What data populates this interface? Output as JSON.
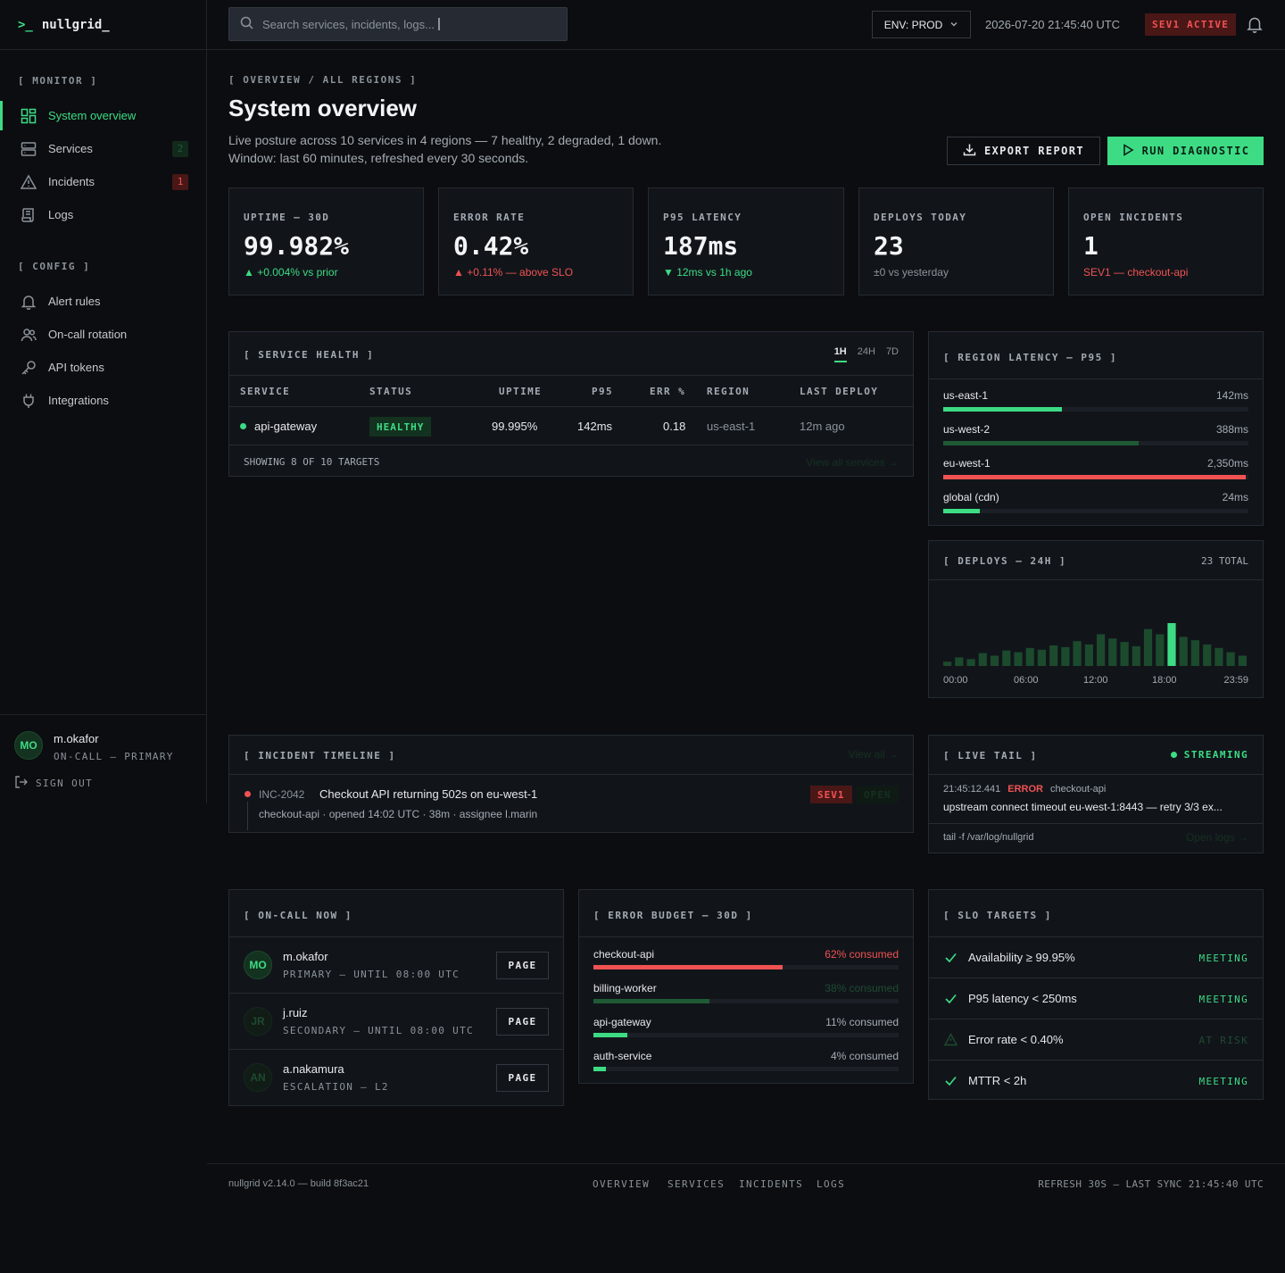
{
  "brand": {
    "prompt": ">_",
    "name": "nullgrid_"
  },
  "search": {
    "placeholder": "Search services, incidents, logs..."
  },
  "topbar": {
    "env": "ENV: PROD",
    "clock": "2026-07-20 21:45:40 UTC",
    "sev_badge": "SEV1 ACTIVE"
  },
  "sidebar": {
    "monitor_label": "[ MONITOR ]",
    "monitor_items": [
      {
        "label": "System overview",
        "icon": "grid-icon"
      },
      {
        "label": "Services",
        "icon": "server-icon",
        "badge": "2"
      },
      {
        "label": "Incidents",
        "icon": "alert-triangle-icon",
        "badge": "1"
      },
      {
        "label": "Logs",
        "icon": "scroll-icon"
      }
    ],
    "config_label": "[ CONFIG ]",
    "config_items": [
      {
        "label": "Alert rules",
        "icon": "bell-icon"
      },
      {
        "label": "On-call rotation",
        "icon": "users-icon"
      },
      {
        "label": "API tokens",
        "icon": "key-icon"
      },
      {
        "label": "Integrations",
        "icon": "plug-icon"
      }
    ],
    "user": {
      "initials": "MO",
      "name": "m.okafor",
      "role": "ON-CALL — PRIMARY",
      "signout": "SIGN OUT"
    }
  },
  "header": {
    "crumb": "[ OVERVIEW / ALL REGIONS ]",
    "title": "System overview",
    "sub1": "Live posture across 10 services in 4 regions — 7 healthy, 2 degraded, 1 down.",
    "sub2": "Window: last 60 minutes, refreshed every 30 seconds.",
    "export": "EXPORT REPORT",
    "diagnostic": "RUN DIAGNOSTIC"
  },
  "kpis": [
    {
      "label": "UPTIME — 30D",
      "value": "99.982%",
      "delta": "▲ +0.004% vs prior",
      "tone": "green"
    },
    {
      "label": "ERROR RATE",
      "value": "0.42%",
      "delta": "▲ +0.11% — above SLO",
      "tone": "red"
    },
    {
      "label": "P95 LATENCY",
      "value": "187ms",
      "delta": "▼ 12ms vs 1h ago",
      "tone": "green"
    },
    {
      "label": "DEPLOYS TODAY",
      "value": "23",
      "delta": "±0 vs yesterday",
      "tone": "muted"
    },
    {
      "label": "OPEN INCIDENTS",
      "value": "1",
      "delta": "SEV1 — checkout-api",
      "tone": "red"
    }
  ],
  "service_health": {
    "title": "[ SERVICE HEALTH ]",
    "ranges": [
      "1H",
      "24H",
      "7D"
    ],
    "columns": [
      "SERVICE",
      "STATUS",
      "UPTIME",
      "P95",
      "ERR %",
      "REGION",
      "LAST DEPLOY"
    ],
    "rows": [
      {
        "service": "api-gateway",
        "status": "HEALTHY",
        "uptime": "99.995%",
        "p95": "142ms",
        "err": "0.18",
        "region": "us-east-1",
        "last_deploy": "12m ago"
      }
    ],
    "footer": "SHOWING 8 OF 10 TARGETS",
    "link": "View all services →"
  },
  "region_latency": {
    "title": "[ REGION LATENCY — P95 ]",
    "rows": [
      {
        "name": "us-east-1",
        "value": "142ms",
        "fill": 0.39,
        "color": "#3ddc84"
      },
      {
        "name": "us-west-2",
        "value": "388ms",
        "fill": 0.64,
        "color": "#1f5a35"
      },
      {
        "name": "eu-west-1",
        "value": "2,350ms",
        "fill": 0.99,
        "color": "#f05252"
      },
      {
        "name": "global (cdn)",
        "value": "24ms",
        "fill": 0.12,
        "color": "#3ddc84"
      }
    ]
  },
  "deploys": {
    "title": "[ DEPLOYS — 24H ]",
    "total": "23 TOTAL",
    "ticks": [
      "00:00",
      "06:00",
      "12:00",
      "18:00",
      "23:59"
    ]
  },
  "chart_data": {
    "type": "bar",
    "values": [
      1,
      2,
      1.6,
      3,
      2.4,
      3.6,
      3.2,
      4.2,
      3.8,
      4.8,
      4.4,
      5.8,
      5,
      7.4,
      6.4,
      5.6,
      4.6,
      8.6,
      7.4,
      10,
      6.8,
      6,
      5,
      4.2,
      3.2,
      2.4
    ],
    "highlight_index": 19,
    "colors": {
      "base": "#1c4a2d",
      "highlight": "#3ddc84"
    }
  },
  "timeline": {
    "title": "[ INCIDENT TIMELINE ]",
    "link": "View all →",
    "items": [
      {
        "id": "INC-2042",
        "title": "Checkout API returning 502s on eu-west-1",
        "meta": "checkout-api · opened 14:02 UTC · 38m · assignee l.marin",
        "sev": "SEV1",
        "state": "OPEN"
      }
    ]
  },
  "live_tail": {
    "title": "[ LIVE TAIL ]",
    "state": "STREAMING",
    "time": "21:45:12.441",
    "level": "ERROR",
    "source": "checkout-api",
    "message": "upstream connect timeout eu-west-1:8443 — retry 3/3 ex...",
    "cmd": "tail -f /var/log/nullgrid",
    "link": "Open logs →"
  },
  "oncall": {
    "title": "[ ON-CALL NOW ]",
    "people": [
      {
        "initials": "MO",
        "name": "m.okafor",
        "role": "PRIMARY — UNTIL 08:00 UTC",
        "action": "PAGE"
      },
      {
        "initials": "JR",
        "name": "j.ruiz",
        "role": "SECONDARY — UNTIL 08:00 UTC",
        "action": "PAGE"
      },
      {
        "initials": "AN",
        "name": "a.nakamura",
        "role": "ESCALATION — L2",
        "action": "PAGE"
      }
    ]
  },
  "error_budget": {
    "title": "[ ERROR BUDGET — 30D ]",
    "rows": [
      {
        "name": "checkout-api",
        "value": "62% consumed",
        "fill": 0.62,
        "color": "#f05252",
        "tone": "#f05252"
      },
      {
        "name": "billing-worker",
        "value": "38% consumed",
        "fill": 0.38,
        "color": "#1f5a35",
        "tone": "#1f4a30"
      },
      {
        "name": "api-gateway",
        "value": "11% consumed",
        "fill": 0.11,
        "color": "#3ddc84",
        "tone": "#a4abb3"
      },
      {
        "name": "auth-service",
        "value": "4% consumed",
        "fill": 0.04,
        "color": "#3ddc84",
        "tone": "#a4abb3"
      }
    ]
  },
  "slo": {
    "title": "[ SLO TARGETS ]",
    "rows": [
      {
        "name": "Availability ≥ 99.95%",
        "state": "MEETING",
        "ok": true
      },
      {
        "name": "P95 latency < 250ms",
        "state": "MEETING",
        "ok": true
      },
      {
        "name": "Error rate < 0.40%",
        "state": "AT RISK",
        "ok": false
      },
      {
        "name": "MTTR < 2h",
        "state": "MEETING",
        "ok": true
      }
    ]
  },
  "footer": {
    "version": "nullgrid v2.14.0 — build 8f3ac21",
    "nav": [
      "OVERVIEW",
      "SERVICES",
      "INCIDENTS",
      "LOGS"
    ],
    "sync": "REFRESH 30S — LAST SYNC 21:45:40 UTC"
  }
}
